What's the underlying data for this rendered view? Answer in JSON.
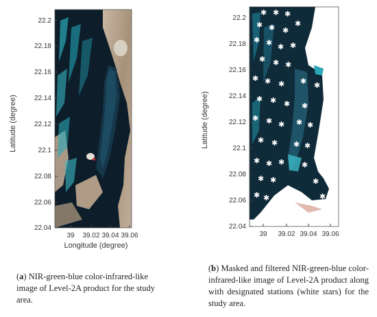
{
  "panel_a": {
    "yticks": [
      "22.2",
      "22.18",
      "22.16",
      "22.14",
      "22.12",
      "22.1",
      "22.08",
      "22.06",
      "22.04"
    ],
    "xticks": [
      "39",
      "39.02",
      "39.04",
      "39.06"
    ],
    "ylabel": "Latitude (degree)",
    "xlabel": "Longitude (degree)",
    "caption_letter": "a",
    "caption_text": "NIR-green-blue color-infrared-like image of Level-2A product for the study area."
  },
  "panel_b": {
    "yticks": [
      "22.2",
      "22.18",
      "22.16",
      "22.14",
      "22.12",
      "22.1",
      "22.08",
      "22.06",
      "22.04"
    ],
    "xticks": [
      "39",
      "39.02",
      "39.04",
      "39.06"
    ],
    "ylabel": "Latitude (degree)",
    "caption_letter": "b",
    "caption_text": "Masked and filtered NIR-green-blue color-infrared-like image of Level-2A product along with designated stations (white stars) for the study area."
  },
  "colors": {
    "deep_water": "#0b1a24",
    "reef": "#2aa7b8",
    "land": "#b8a48e",
    "stars": "#ffffff"
  }
}
